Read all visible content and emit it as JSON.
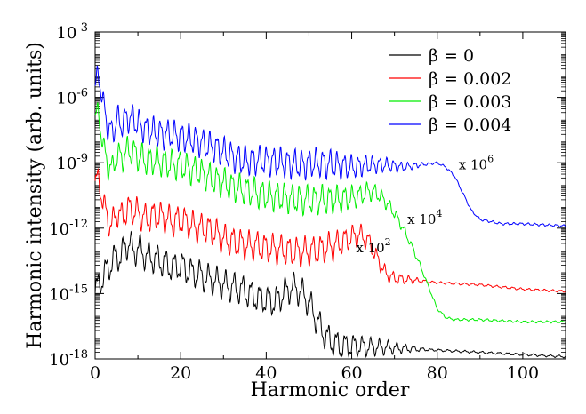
{
  "chart_data": {
    "type": "line",
    "title": "",
    "xlabel": "Harmonic order",
    "ylabel": "Harmonic intensity (arb. units)",
    "xlim": [
      0,
      110
    ],
    "ylim_log10": [
      -18,
      -3
    ],
    "y_scale": "log",
    "x_ticks": [
      0,
      20,
      40,
      60,
      80,
      100
    ],
    "x_tick_labels": [
      "0",
      "20",
      "40",
      "60",
      "80",
      "100"
    ],
    "y_ticks_log10": [
      -18,
      -15,
      -12,
      -9,
      -6,
      -3
    ],
    "y_tick_labels": [
      {
        "base": "10",
        "exp": "-18"
      },
      {
        "base": "10",
        "exp": "-15"
      },
      {
        "base": "10",
        "exp": "-12"
      },
      {
        "base": "10",
        "exp": "-9"
      },
      {
        "base": "10",
        "exp": "-6"
      },
      {
        "base": "10",
        "exp": "-3"
      }
    ],
    "legend_position": "top-right",
    "series": [
      {
        "name": "β = 0",
        "color": "#000000",
        "note": "",
        "x": [
          0,
          1,
          2,
          3,
          4,
          5,
          6,
          7,
          8,
          9,
          10,
          12,
          14,
          16,
          18,
          20,
          22,
          24,
          26,
          28,
          30,
          32,
          34,
          36,
          38,
          40,
          42,
          44,
          46,
          48,
          50,
          52,
          54,
          56,
          58,
          60,
          70,
          80,
          90,
          100,
          110
        ],
        "y_log10": [
          -15.0,
          -14.5,
          -14.2,
          -13.8,
          -13.6,
          -13.2,
          -13.4,
          -12.8,
          -12.7,
          -13.1,
          -12.9,
          -13.3,
          -13.4,
          -13.6,
          -13.8,
          -13.7,
          -14.0,
          -14.1,
          -14.3,
          -14.4,
          -14.6,
          -14.7,
          -14.8,
          -15.0,
          -15.2,
          -15.3,
          -15.4,
          -15.0,
          -14.7,
          -14.9,
          -15.4,
          -16.3,
          -17.0,
          -17.3,
          -17.4,
          -17.4,
          -17.5,
          -17.6,
          -17.7,
          -17.8,
          -17.9
        ]
      },
      {
        "name": "β = 0.002",
        "color": "#ff0000",
        "note": "x 10^2",
        "x": [
          0,
          1,
          2,
          3,
          4,
          5,
          6,
          8,
          10,
          12,
          14,
          16,
          18,
          20,
          22,
          24,
          26,
          28,
          30,
          32,
          34,
          36,
          38,
          40,
          44,
          48,
          52,
          56,
          60,
          62,
          64,
          66,
          68,
          70,
          80,
          90,
          100,
          110
        ],
        "y_log10": [
          -10.0,
          -9.8,
          -11.0,
          -11.6,
          -11.9,
          -11.2,
          -11.5,
          -11.1,
          -11.3,
          -11.6,
          -11.4,
          -11.5,
          -11.7,
          -11.6,
          -11.8,
          -12.0,
          -12.0,
          -12.2,
          -12.5,
          -12.6,
          -12.7,
          -12.8,
          -12.8,
          -12.9,
          -13.0,
          -13.1,
          -13.0,
          -12.8,
          -12.4,
          -12.3,
          -12.6,
          -13.4,
          -14.1,
          -14.3,
          -14.5,
          -14.6,
          -14.8,
          -14.9
        ]
      },
      {
        "name": "β = 0.003",
        "color": "#00ee00",
        "note": "x 10^4",
        "x": [
          0,
          1,
          2,
          3,
          4,
          5,
          6,
          8,
          10,
          12,
          14,
          16,
          18,
          20,
          22,
          24,
          26,
          28,
          30,
          32,
          34,
          36,
          40,
          44,
          48,
          52,
          56,
          60,
          62,
          64,
          66,
          68,
          70,
          72,
          74,
          76,
          78,
          80,
          82,
          84,
          90,
          100,
          110
        ],
        "y_log10": [
          -7.0,
          -6.8,
          -8.5,
          -9.0,
          -9.4,
          -8.6,
          -8.8,
          -8.4,
          -8.7,
          -8.9,
          -8.9,
          -9.0,
          -9.1,
          -9.1,
          -9.3,
          -9.4,
          -9.6,
          -9.8,
          -9.9,
          -10.1,
          -10.2,
          -10.3,
          -10.5,
          -10.6,
          -10.7,
          -10.7,
          -10.7,
          -10.6,
          -10.5,
          -10.3,
          -10.4,
          -10.8,
          -11.3,
          -12.0,
          -12.8,
          -13.7,
          -14.7,
          -15.7,
          -16.1,
          -16.2,
          -16.2,
          -16.3,
          -16.3
        ]
      },
      {
        "name": "β = 0.004",
        "color": "#0000ff",
        "note": "x 10^6",
        "x": [
          0,
          1,
          2,
          3,
          4,
          5,
          6,
          8,
          10,
          12,
          14,
          16,
          18,
          20,
          22,
          24,
          26,
          28,
          30,
          32,
          34,
          36,
          40,
          44,
          48,
          52,
          56,
          60,
          64,
          68,
          72,
          76,
          80,
          82,
          84,
          86,
          88,
          90,
          95,
          100,
          110
        ],
        "y_log10": [
          -5.5,
          -5.0,
          -6.5,
          -7.3,
          -7.7,
          -7.0,
          -7.2,
          -6.9,
          -7.2,
          -7.5,
          -7.6,
          -7.7,
          -7.7,
          -7.8,
          -7.9,
          -8.0,
          -8.2,
          -8.3,
          -8.5,
          -8.7,
          -8.9,
          -8.9,
          -8.9,
          -9.0,
          -9.1,
          -9.0,
          -9.1,
          -9.2,
          -9.1,
          -9.1,
          -9.2,
          -9.1,
          -9.0,
          -9.2,
          -9.6,
          -10.4,
          -11.2,
          -11.6,
          -11.8,
          -11.8,
          -11.9
        ]
      }
    ],
    "annotations": [
      {
        "base": "x 10",
        "exp": "6",
        "at": [
          85,
          -9.3
        ]
      },
      {
        "base": "x 10",
        "exp": "4",
        "at": [
          73,
          -11.8
        ]
      },
      {
        "base": "x 10",
        "exp": "2",
        "at": [
          61,
          -13.1
        ]
      }
    ]
  }
}
